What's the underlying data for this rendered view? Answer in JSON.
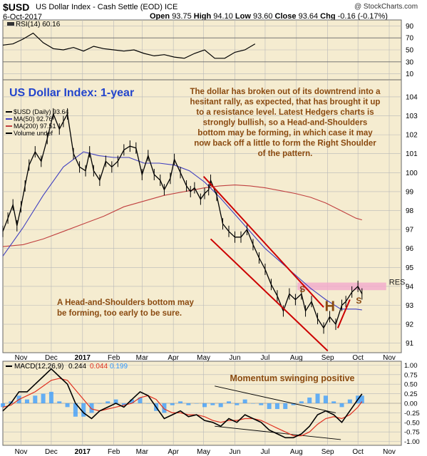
{
  "header": {
    "symbol": "$USD",
    "description": "US Dollar Index - Cash Settle (EOD) ICE",
    "date": "6-Oct-2017",
    "watermark": "@ StockCharts.com",
    "ohlc": [
      {
        "label": "Open",
        "value": "93.75"
      },
      {
        "label": "High",
        "value": "94.10"
      },
      {
        "label": "Low",
        "value": "93.60"
      },
      {
        "label": "Close",
        "value": "93.64"
      },
      {
        "label": "Chg",
        "value": "-0.16 (-0.17%)"
      }
    ]
  },
  "colors": {
    "panel_bg": "#f5ecd0",
    "grid": "#b8b8b8",
    "price": "#000000",
    "ma50": "#4040c0",
    "ma200": "#c04040",
    "channel": "#cc0000",
    "resistance": "#f2aacc",
    "annotation": "#8a4a10",
    "title_blue": "#2244cc",
    "macd_signal": "#e03020",
    "histogram": "#3399ff"
  },
  "chart_data": [
    {
      "type": "line",
      "panel": "rsi",
      "legend": "RSI(14) 60.16",
      "yticks": [
        10,
        30,
        50,
        70,
        90
      ],
      "ylim": [
        0,
        100
      ],
      "x": [
        0,
        10,
        20,
        30,
        40,
        50,
        60,
        70,
        80,
        90,
        100,
        110,
        120,
        130,
        140,
        150,
        160,
        170,
        180,
        190,
        200,
        210,
        220,
        230,
        240,
        250
      ],
      "values": [
        58,
        60,
        68,
        78,
        62,
        52,
        50,
        54,
        48,
        56,
        52,
        50,
        48,
        50,
        44,
        40,
        42,
        38,
        36,
        44,
        50,
        36,
        36,
        46,
        50,
        60
      ]
    },
    {
      "type": "line",
      "panel": "price",
      "title": "US Dollar Index: 1-year",
      "legend": [
        "$USD (Daily) 93.64",
        "MA(50) 92.76",
        "MA(200) 97.51",
        "Volume undef"
      ],
      "ylim": [
        90.5,
        104.9
      ],
      "yticks": [
        91,
        92,
        93,
        94,
        95,
        96,
        97,
        98,
        99,
        100,
        101,
        102,
        103,
        104
      ],
      "x_months": [
        {
          "label": "Nov",
          "day": 18
        },
        {
          "label": "Dec",
          "day": 48
        },
        {
          "label": "2017",
          "day": 79,
          "bold": true
        },
        {
          "label": "Feb",
          "day": 110
        },
        {
          "label": "Mar",
          "day": 138
        },
        {
          "label": "Apr",
          "day": 169
        },
        {
          "label": "May",
          "day": 199
        },
        {
          "label": "Jun",
          "day": 230
        },
        {
          "label": "Jul",
          "day": 260
        },
        {
          "label": "Aug",
          "day": 291
        },
        {
          "label": "Sep",
          "day": 322
        },
        {
          "label": "Oct",
          "day": 352
        },
        {
          "label": "Nov",
          "day": 383
        }
      ],
      "price": {
        "x": [
          0,
          5,
          10,
          14,
          18,
          22,
          26,
          32,
          38,
          44,
          50,
          56,
          60,
          64,
          70,
          76,
          82,
          86,
          90,
          96,
          102,
          108,
          114,
          120,
          126,
          132,
          138,
          144,
          150,
          156,
          160,
          166,
          170,
          176,
          182,
          186,
          190,
          196,
          200,
          204,
          206,
          212,
          218,
          224,
          230,
          236,
          242,
          248,
          254,
          260,
          266,
          272,
          278,
          284,
          290,
          296,
          300,
          306,
          312,
          318,
          324,
          330,
          336,
          340,
          346,
          352,
          356
        ],
        "values": [
          96.9,
          97.6,
          98.3,
          97.2,
          98.2,
          99.3,
          100.4,
          101.1,
          100.6,
          101.8,
          103.1,
          102.3,
          102.7,
          103.1,
          101.0,
          100.3,
          100.1,
          101.1,
          100.1,
          99.6,
          100.6,
          100.3,
          100.6,
          101.2,
          101.4,
          101.3,
          99.9,
          100.9,
          99.9,
          99.6,
          99.1,
          99.7,
          100.7,
          100.0,
          99.3,
          99.0,
          99.2,
          98.6,
          98.9,
          99.1,
          99.6,
          98.8,
          97.3,
          96.9,
          96.6,
          96.6,
          97.0,
          96.2,
          95.5,
          94.9,
          94.1,
          93.5,
          92.7,
          93.6,
          93.3,
          93.6,
          92.7,
          93.2,
          92.3,
          91.8,
          92.4,
          92.0,
          93.0,
          93.2,
          93.7,
          94.0,
          93.6
        ]
      },
      "ma50": {
        "x": [
          0,
          20,
          40,
          60,
          80,
          95,
          110,
          125,
          140,
          155,
          170,
          185,
          200,
          215,
          230,
          245,
          260,
          275,
          290,
          305,
          320,
          335,
          350,
          356
        ],
        "values": [
          95.6,
          97.1,
          98.8,
          100.3,
          101.1,
          100.9,
          100.8,
          100.8,
          100.5,
          100.5,
          100.4,
          100.1,
          99.5,
          98.7,
          97.8,
          96.9,
          96.0,
          95.3,
          94.6,
          93.9,
          93.3,
          92.8,
          92.8,
          92.76
        ]
      },
      "ma200": {
        "x": [
          0,
          20,
          40,
          60,
          80,
          100,
          120,
          140,
          160,
          180,
          200,
          215,
          230,
          245,
          260,
          275,
          290,
          305,
          320,
          335,
          350,
          356
        ],
        "values": [
          96.1,
          96.2,
          96.5,
          96.9,
          97.3,
          97.7,
          98.2,
          98.5,
          98.8,
          99.0,
          99.2,
          99.3,
          99.35,
          99.3,
          99.2,
          99.05,
          98.9,
          98.7,
          98.4,
          98.0,
          97.6,
          97.51
        ]
      },
      "channel_upper": {
        "from": [
          199,
          99.8
        ],
        "to": [
          318,
          92.9
        ]
      },
      "channel_lower": {
        "from": [
          206,
          96.5
        ],
        "to": [
          322,
          90.6
        ]
      },
      "uptrend_line": {
        "from": [
          332,
          91.8
        ],
        "to": [
          344,
          93.3
        ]
      },
      "resistance_band": {
        "from_day": 292,
        "to_day": 380,
        "y_low": 93.8,
        "y_high": 94.2,
        "label": "RES."
      },
      "pattern_labels": [
        {
          "text": "S",
          "day": 294,
          "y": 93.7,
          "size": "small"
        },
        {
          "text": "H",
          "day": 319,
          "y": 92.7,
          "size": "large"
        },
        {
          "text": "S",
          "day": 350,
          "y": 93.1,
          "size": "small"
        }
      ],
      "annotations": [
        "The dollar has broken out of its downtrend into a",
        "hesitant rally, as expected, that has brought it up",
        "to a resistance level. Latest Hedgers charts is",
        "strongly bullish, so a Head-and-Shoulders",
        "bottom may be forming, in which case it may",
        "now back off a little to form the Right Shoulder",
        "of the pattern."
      ],
      "annotation2": [
        "A Head-and-Shoulders bottom may",
        "be forming, too early to be sure."
      ]
    },
    {
      "type": "line",
      "panel": "macd",
      "legend": {
        "name": "MACD(12,26,9)",
        "macd": "0.244",
        "signal": "0.044",
        "hist": "0.199"
      },
      "ylim": [
        -1.1,
        1.1
      ],
      "yticks": [
        "1.00",
        "0.75",
        "0.50",
        "0.25",
        "0.00",
        "-0.25",
        "-0.50",
        "-0.75",
        "-1.00"
      ],
      "annotation": "Momentum swinging positive",
      "x": [
        0,
        8,
        16,
        24,
        32,
        40,
        48,
        56,
        64,
        72,
        80,
        88,
        96,
        104,
        112,
        120,
        128,
        136,
        144,
        152,
        160,
        168,
        176,
        184,
        192,
        200,
        208,
        216,
        224,
        232,
        240,
        248,
        256,
        264,
        272,
        280,
        288,
        296,
        304,
        312,
        320,
        328,
        336,
        344,
        352,
        356
      ],
      "macd": [
        -0.2,
        0.0,
        0.3,
        0.3,
        0.5,
        0.7,
        0.9,
        0.7,
        0.5,
        0.0,
        -0.25,
        -0.4,
        -0.2,
        -0.1,
        0.0,
        -0.1,
        0.1,
        0.3,
        0.2,
        -0.1,
        -0.4,
        -0.3,
        -0.2,
        -0.35,
        -0.3,
        -0.45,
        -0.5,
        -0.6,
        -0.4,
        -0.5,
        -0.3,
        -0.4,
        -0.5,
        -0.7,
        -0.8,
        -0.9,
        -0.9,
        -0.8,
        -0.6,
        -0.3,
        -0.2,
        -0.3,
        -0.5,
        -0.2,
        0.1,
        0.244
      ],
      "signal": [
        -0.1,
        -0.05,
        0.1,
        0.2,
        0.3,
        0.45,
        0.6,
        0.65,
        0.6,
        0.35,
        0.1,
        -0.15,
        -0.2,
        -0.15,
        -0.1,
        -0.05,
        0.0,
        0.15,
        0.2,
        0.1,
        -0.15,
        -0.25,
        -0.25,
        -0.3,
        -0.3,
        -0.35,
        -0.45,
        -0.5,
        -0.45,
        -0.45,
        -0.4,
        -0.4,
        -0.45,
        -0.55,
        -0.65,
        -0.75,
        -0.85,
        -0.85,
        -0.75,
        -0.55,
        -0.4,
        -0.35,
        -0.4,
        -0.3,
        -0.1,
        0.044
      ],
      "trendline_upper": {
        "from": [
          210,
          0.45
        ],
        "to": [
          330,
          -0.25
        ]
      },
      "trendline_lower": {
        "from": [
          210,
          -0.6
        ],
        "to": [
          335,
          -0.95
        ]
      }
    }
  ]
}
